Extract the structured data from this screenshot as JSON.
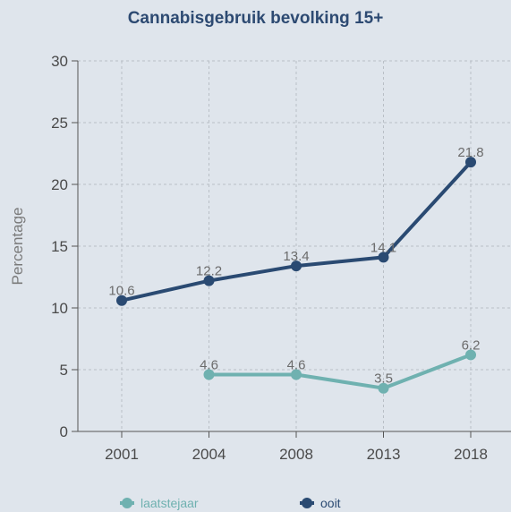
{
  "chart_data": {
    "type": "line",
    "title": "Cannabisgebruik bevolking 15+",
    "ylabel": "Percentage",
    "xlabel": "",
    "categories": [
      "2001",
      "2004",
      "2008",
      "2013",
      "2018"
    ],
    "ylim": [
      0,
      30
    ],
    "yticks": [
      0,
      5,
      10,
      15,
      20,
      25,
      30
    ],
    "grid": true,
    "legend_position": "bottom",
    "series": [
      {
        "name": "laatstejaar",
        "color": "#6fb1b0",
        "values": [
          null,
          4.6,
          4.6,
          3.5,
          6.2
        ],
        "labels": [
          "",
          "4.6",
          "4.6",
          "3.5",
          "6.2"
        ]
      },
      {
        "name": "ooit",
        "color": "#2a4a72",
        "values": [
          10.6,
          12.2,
          13.4,
          14.1,
          21.8
        ],
        "labels": [
          "10.6",
          "12.2",
          "13.4",
          "14.1",
          "21.8"
        ]
      }
    ]
  }
}
